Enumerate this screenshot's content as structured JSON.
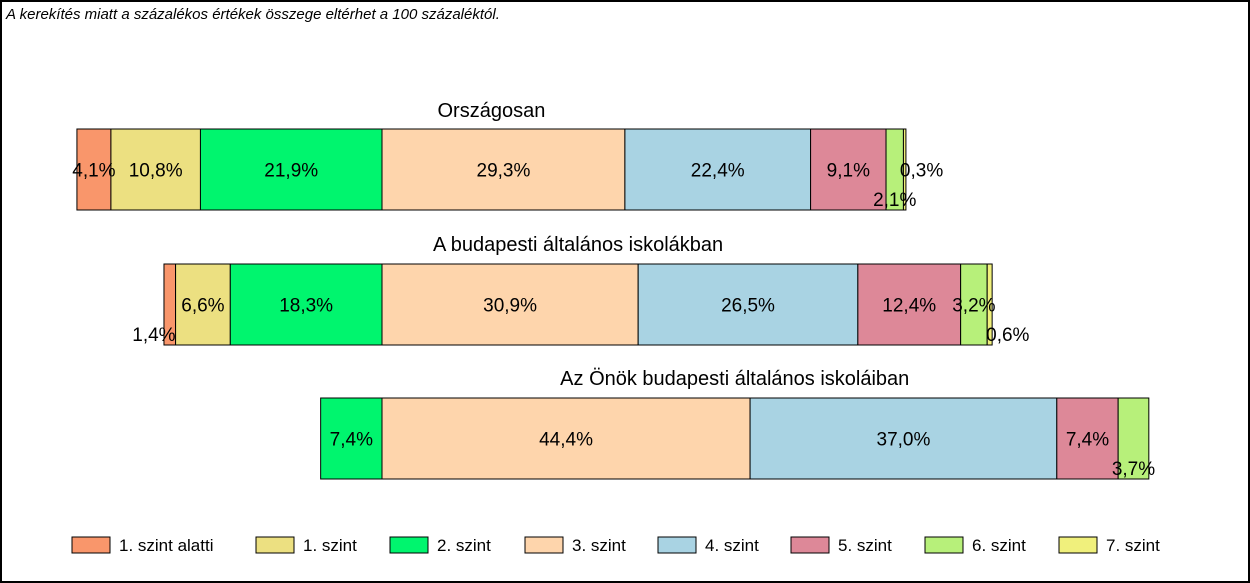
{
  "note": "A kerekítés miatt a  százalékos értékek összege eltérhet a 100 százaléktól.",
  "colors": {
    "1. szint alatti": "#f9966b",
    "1. szint": "#ece081",
    "2. szint": "#00f56e",
    "3. szint": "#fed5ac",
    "4. szint": "#a9d3e3",
    "5. szint": "#dd8898",
    "6. szint": "#b7f07a",
    "7. szint": "#f0f07c"
  },
  "chart_data": {
    "type": "bar",
    "orientation": "horizontal",
    "stacked": true,
    "value_unit": "%",
    "categories": [
      "1. szint alatti",
      "1. szint",
      "2. szint",
      "3. szint",
      "4. szint",
      "5. szint",
      "6. szint",
      "7. szint"
    ],
    "legend": [
      "1. szint alatti",
      "1. szint",
      "2. szint",
      "3. szint",
      "4. szint",
      "5. szint",
      "6. szint",
      "7. szint"
    ],
    "legend_position": "bottom",
    "alignment": "boundary between 2. szint and 3. szint aligned across bars",
    "panels": [
      {
        "title": "Országosan",
        "values": [
          4.1,
          10.8,
          21.9,
          29.3,
          22.4,
          9.1,
          2.1,
          0.3
        ],
        "labels": [
          "4,1%",
          "10,8%",
          "21,9%",
          "29,3%",
          "22,4%",
          "9,1%",
          "2,1%",
          "0,3%"
        ]
      },
      {
        "title": "A budapesti általános iskolákban",
        "values": [
          1.4,
          6.6,
          18.3,
          30.9,
          26.5,
          12.4,
          3.2,
          0.6
        ],
        "labels": [
          "1,4%",
          "6,6%",
          "18,3%",
          "30,9%",
          "26,5%",
          "12,4%",
          "3,2%",
          "0,6%"
        ]
      },
      {
        "title": "Az Önök budapesti általános iskoláiban",
        "values": [
          0,
          0,
          7.4,
          44.4,
          37.0,
          7.4,
          3.7,
          0
        ],
        "labels": [
          "",
          "",
          "7,4%",
          "44,4%",
          "37,0%",
          "7,4%",
          "3,7%",
          ""
        ]
      }
    ]
  }
}
